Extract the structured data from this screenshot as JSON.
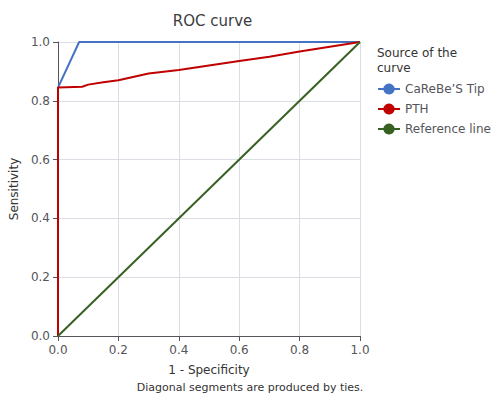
{
  "chart_data": {
    "type": "line",
    "title": "ROC curve",
    "xlabel": "1 - Specificity",
    "ylabel": "Sensitivity",
    "footnote": "Diagonal segments are produced by ties.",
    "legend_title": "Source of the\ncurve",
    "legend": "right",
    "grid": true,
    "series": [
      {
        "name": "CaReBe’S Tip",
        "color": "#4472C4",
        "x": [
          0.0,
          0.0,
          0.07,
          1.0
        ],
        "values": [
          0.0,
          0.845,
          1.0,
          1.0
        ]
      },
      {
        "name": "PTH",
        "color": "#C00000",
        "x": [
          0.0,
          0.0,
          0.08,
          0.1,
          0.15,
          0.2,
          0.3,
          0.4,
          0.5,
          0.6,
          0.7,
          0.8,
          0.9,
          1.0
        ],
        "values": [
          0.0,
          0.845,
          0.848,
          0.855,
          0.863,
          0.87,
          0.893,
          0.905,
          0.92,
          0.935,
          0.95,
          0.968,
          0.984,
          1.0
        ]
      },
      {
        "name": "Reference line",
        "color": "#376122",
        "x": [
          0.0,
          1.0
        ],
        "values": [
          0.0,
          1.0
        ]
      }
    ],
    "xlim": [
      0.0,
      1.0
    ],
    "ylim": [
      0.0,
      1.0
    ],
    "xticks": [
      {
        "value": 0.0,
        "label": "0.0"
      },
      0.2,
      0.4,
      0.6,
      0.8,
      {
        "value": 1.0,
        "label": "1.0"
      }
    ],
    "yticks": [
      {
        "value": 0.0,
        "label": "0.0"
      },
      0.2,
      0.4,
      0.6,
      0.8,
      {
        "value": 1.0,
        "label": "1.0"
      }
    ]
  }
}
